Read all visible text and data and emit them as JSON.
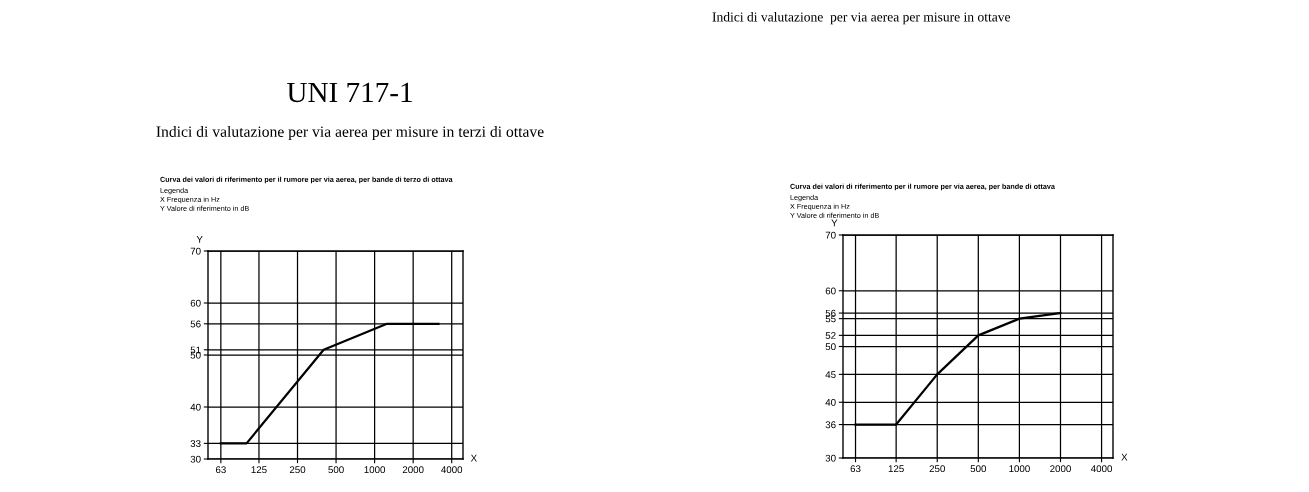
{
  "chart_data": [
    {
      "type": "line",
      "title": "UNI 717-1",
      "subtitle": "Indici di valutazione per via aerea per misure in terzi di ottave",
      "annotations": [
        "Curva dei valori di riferimento per il rumore per via aerea, per bande di terzo di ottava",
        "Legenda",
        "X Frequenza in Hz",
        "Y Valore di riferimento in dB"
      ],
      "xlabel": "X",
      "ylabel": "Y",
      "log": "x",
      "grid": true,
      "marker": "none",
      "line_style": "solid",
      "x": [
        63,
        100,
        400,
        1250,
        3150
      ],
      "values": [
        33,
        33,
        51,
        56,
        56
      ],
      "color": "#000000",
      "xlim": [
        50,
        4900
      ],
      "ylim": [
        30,
        70
      ],
      "xticks": [
        63,
        125,
        250,
        500,
        1000,
        2000,
        4000
      ],
      "yticks": [
        30,
        33,
        40,
        50,
        51,
        56,
        60,
        70
      ]
    },
    {
      "type": "line",
      "title": "Indici di valutazione  per via aerea per misure in ottave",
      "annotations": [
        "Curva dei valori di riferimento per il rumore per via aerea, per bande di ottava",
        "Legenda",
        "X Frequenza in Hz",
        "Y Valore di riferimento in dB"
      ],
      "xlabel": "X",
      "ylabel": "Y",
      "log": "x",
      "grid": true,
      "marker": "none",
      "line_style": "solid",
      "x": [
        63,
        125,
        250,
        500,
        1000,
        2000
      ],
      "values": [
        36,
        36,
        45,
        52,
        55,
        56
      ],
      "color": "#000000",
      "xlim": [
        51,
        4850
      ],
      "ylim": [
        30,
        70
      ],
      "xticks": [
        63,
        125,
        250,
        500,
        1000,
        2000,
        4000
      ],
      "yticks": [
        30,
        36,
        40,
        45,
        50,
        52,
        55,
        56,
        60,
        70
      ]
    }
  ]
}
